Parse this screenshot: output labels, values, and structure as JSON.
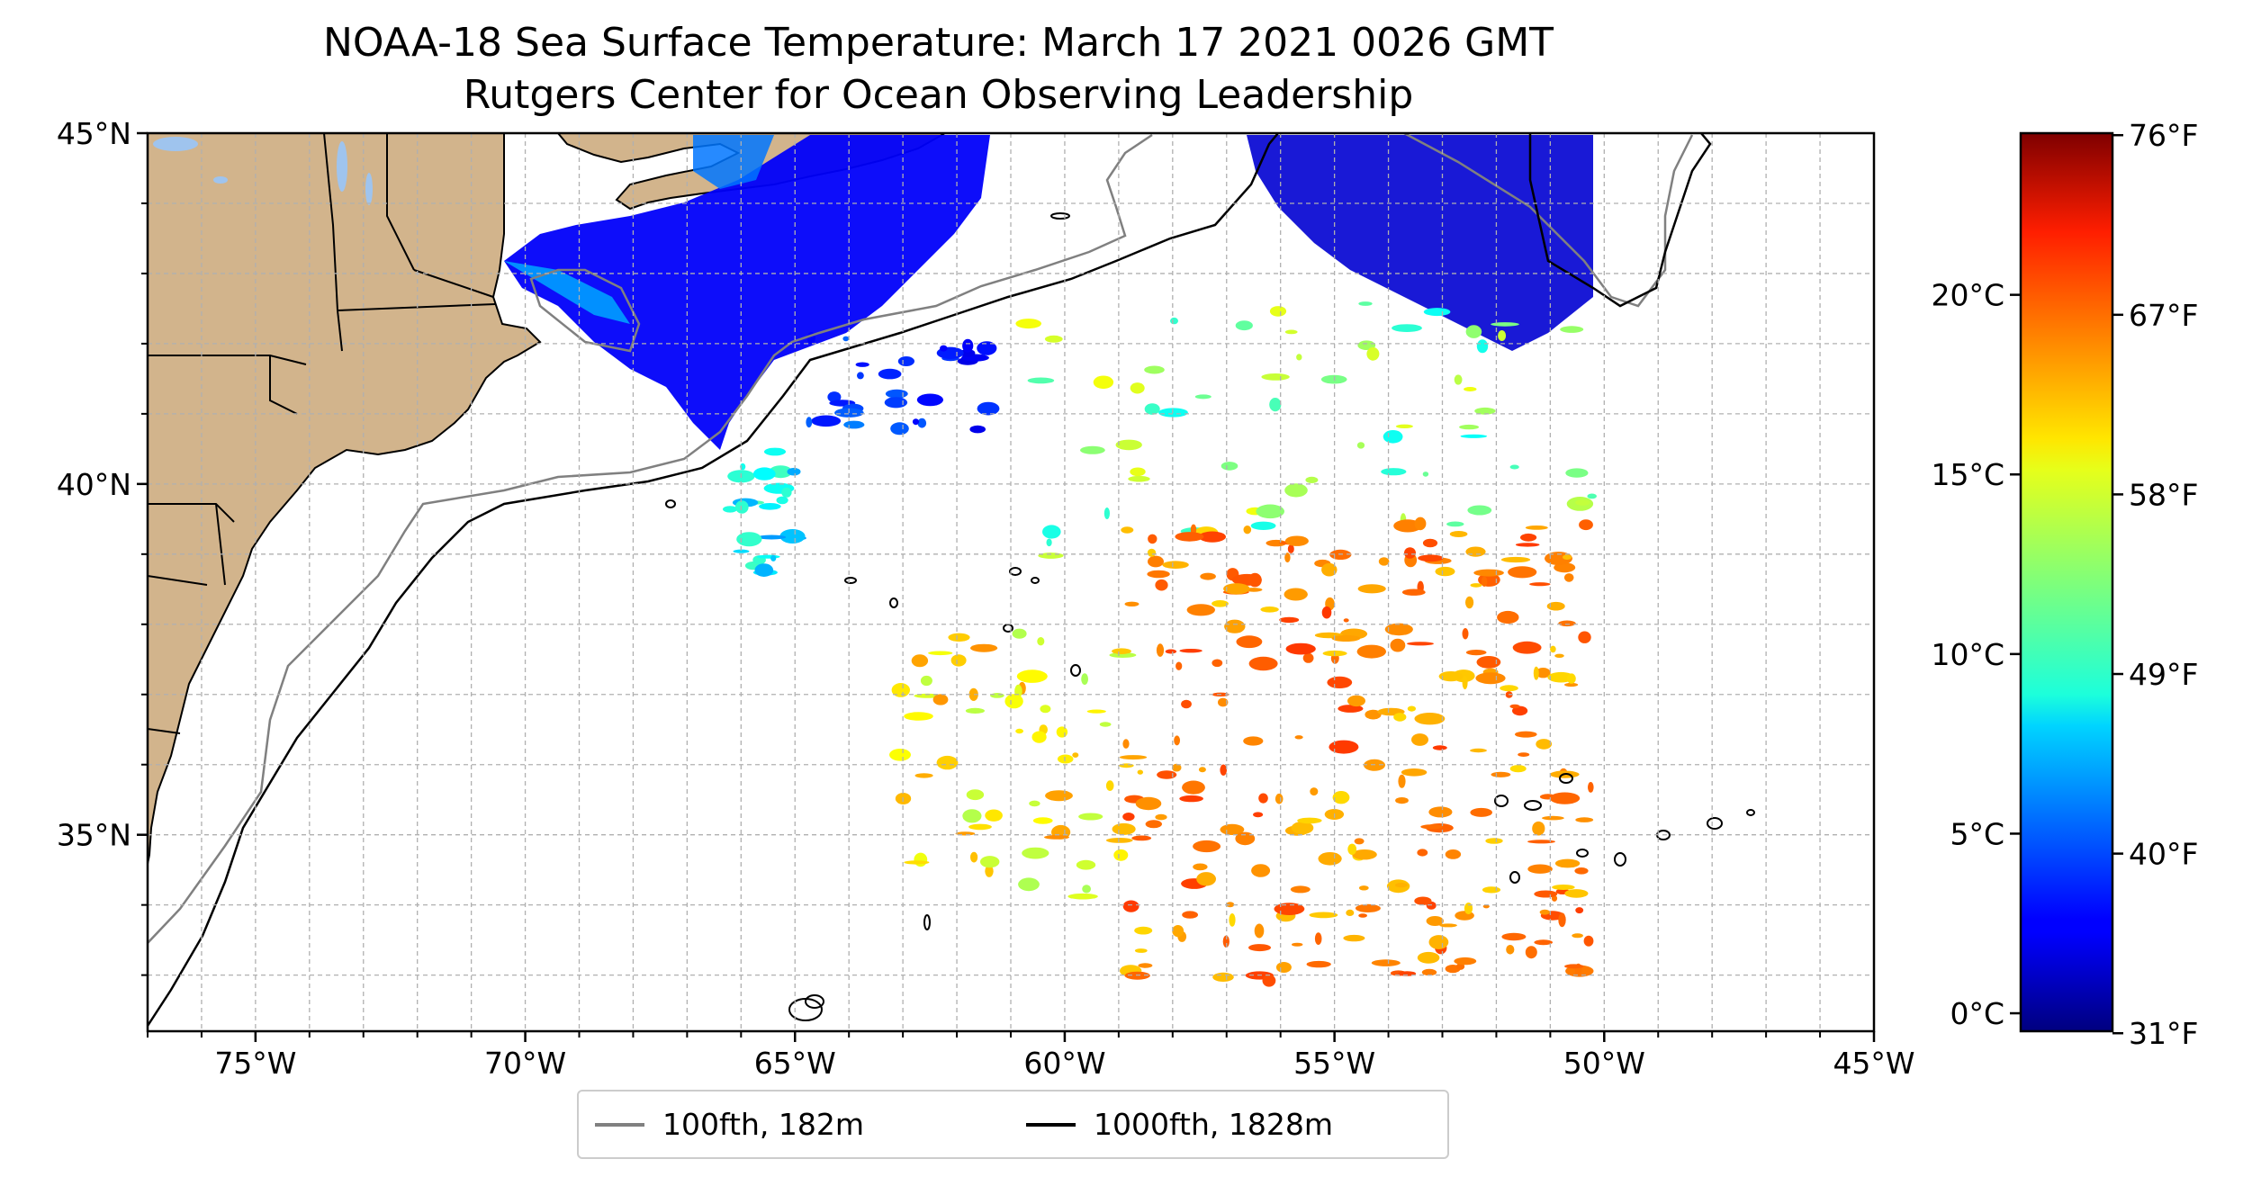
{
  "title": {
    "line1": "NOAA-18 Sea Surface Temperature: March 17 2021 0026 GMT",
    "line2": "Rutgers Center for Ocean Observing Leadership"
  },
  "map": {
    "lon_range": [
      -77,
      -45
    ],
    "lat_range": [
      32.2,
      45
    ],
    "lon_ticks": [
      {
        "value": -75,
        "label": "75°W"
      },
      {
        "value": -70,
        "label": "70°W"
      },
      {
        "value": -65,
        "label": "65°W"
      },
      {
        "value": -60,
        "label": "60°W"
      },
      {
        "value": -55,
        "label": "55°W"
      },
      {
        "value": -50,
        "label": "50°W"
      },
      {
        "value": -45,
        "label": "45°W"
      }
    ],
    "lat_ticks": [
      {
        "value": 45,
        "label": "45°N"
      },
      {
        "value": 40,
        "label": "40°N"
      },
      {
        "value": 35,
        "label": "35°N"
      }
    ],
    "minor_grid_step_deg": 1,
    "land_color": "#d2b48c",
    "lake_color": "#9fc4ee"
  },
  "colorbar": {
    "celsius_range": [
      -0.5,
      24.5
    ],
    "celsius_ticks": [
      {
        "value": 0,
        "label": "0°C"
      },
      {
        "value": 5,
        "label": "5°C"
      },
      {
        "value": 10,
        "label": "10°C"
      },
      {
        "value": 15,
        "label": "15°C"
      },
      {
        "value": 20,
        "label": "20°C"
      }
    ],
    "fahrenheit_ticks": [
      {
        "value": 31,
        "label": "31°F"
      },
      {
        "value": 40,
        "label": "40°F"
      },
      {
        "value": 49,
        "label": "49°F"
      },
      {
        "value": 58,
        "label": "58°F"
      },
      {
        "value": 67,
        "label": "67°F"
      },
      {
        "value": 76,
        "label": "76°F"
      }
    ],
    "colormap": "jet"
  },
  "legend": {
    "items": [
      {
        "label": "100fth, 182m",
        "color": "#808080"
      },
      {
        "label": "1000fth, 1828m",
        "color": "#000000"
      }
    ]
  }
}
